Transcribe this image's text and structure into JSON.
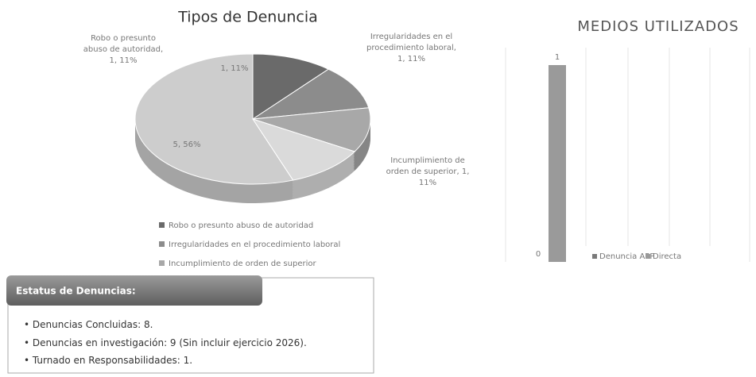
{
  "chart_data": [
    {
      "type": "pie",
      "title": "Tipos de Denuncia",
      "categories": [
        "Robo o presunto abuso de autoridad",
        "Irregularidades en el procedimiento laboral",
        "Incumplimiento de orden de superior",
        null,
        null
      ],
      "values": [
        1,
        1,
        1,
        1,
        5
      ],
      "value_labels": [
        "Robo o presunto abuso de autoridad, 1, 11%",
        "Irregularidades en el procedimiento laboral, 1, 11%",
        "Incumplimiento de orden de superior, 1, 11%",
        "1, 11%",
        "5, 56%"
      ],
      "colors": [
        "#6a6a6a",
        "#8c8c8c",
        "#a8a8a8",
        "#dadada",
        "#cdcdcd"
      ]
    },
    {
      "type": "bar",
      "title": "MEDIOS UTILIZADOS",
      "categories": [
        null
      ],
      "series": [
        {
          "name": "Denuncia APP",
          "color": "#7a7a7a",
          "values": [
            0
          ]
        },
        {
          "name": "Directa",
          "color": "#9a9a9a",
          "values": [
            1
          ]
        }
      ],
      "ylim": [
        0,
        1
      ]
    }
  ],
  "status": {
    "title": "Estatus de Denuncias:",
    "items": [
      "Denuncias Concluidas: 8.",
      "Denuncias en investigación: 9 (Sin incluir ejercicio 2026).",
      "Turnado en Responsabilidades: 1."
    ]
  }
}
